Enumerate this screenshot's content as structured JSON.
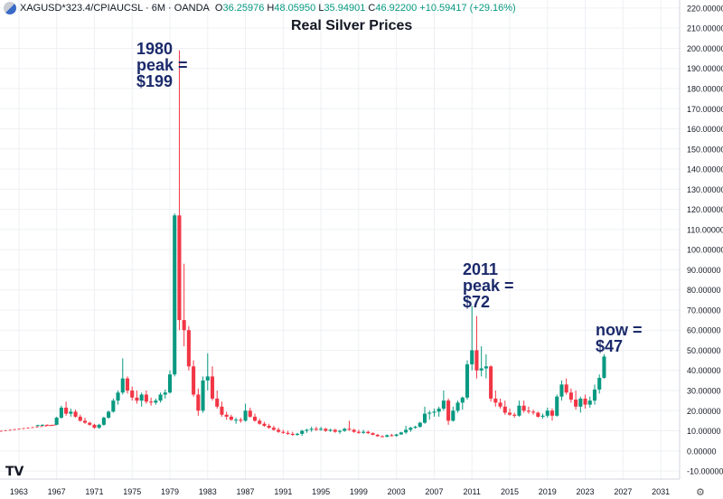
{
  "header": {
    "symbol": "XAGUSD*323.4/CPIAUCSL · 6M · OANDA",
    "open_label": "O",
    "open": "36.25976",
    "high_label": "H",
    "high": "48.05950",
    "low_label": "L",
    "low": "35.94901",
    "close_label": "C",
    "close": "46.92200",
    "change": "+10.59417 (+29.16%)"
  },
  "chart_data": {
    "type": "candlestick",
    "title": "Real Silver Prices",
    "xlabel": "",
    "ylabel": "",
    "x_ticks": [
      "1963",
      "1967",
      "1971",
      "1975",
      "1979",
      "1983",
      "1987",
      "1991",
      "1995",
      "1999",
      "2003",
      "2007",
      "2011",
      "2015",
      "2019",
      "2023",
      "2027",
      "2031"
    ],
    "y_ticks": [
      "220.00000",
      "210.00000",
      "200.00000",
      "190.00000",
      "180.00000",
      "170.00000",
      "160.00000",
      "150.00000",
      "140.00000",
      "130.00000",
      "120.00000",
      "110.00000",
      "100.00000",
      "90.00000",
      "80.00000",
      "70.00000",
      "60.00000",
      "50.00000",
      "40.00000",
      "30.00000",
      "20.00000",
      "10.00000",
      "0.00000",
      "-10.00000"
    ],
    "ylim": [
      -14,
      224
    ],
    "xlim": [
      1961.0,
      2033.0
    ],
    "grid": true,
    "annotations": [
      {
        "lines": [
          "1980",
          "peak =",
          "$199"
        ]
      },
      {
        "lines": [
          "2011",
          "peak =",
          "$72"
        ]
      },
      {
        "lines": [
          "now =",
          "$47"
        ]
      }
    ],
    "up_color": "#089981",
    "down_color": "#f23645",
    "pre_line": {
      "start": 1960.5,
      "end": 1967.0,
      "values_start": 9.5,
      "values_end": 13.0
    },
    "candles": [
      [
        1965.0,
        12.5,
        13.0,
        12.2,
        12.8
      ],
      [
        1965.5,
        12.8,
        13.2,
        12.5,
        13.0
      ],
      [
        1966.0,
        13.0,
        13.2,
        12.7,
        12.9
      ],
      [
        1966.5,
        12.9,
        13.1,
        12.6,
        12.8
      ],
      [
        1967.0,
        13.0,
        17.0,
        12.8,
        16.5
      ],
      [
        1967.5,
        16.5,
        22.5,
        16.0,
        21.5
      ],
      [
        1968.0,
        21.5,
        24.5,
        17.5,
        18.5
      ],
      [
        1968.5,
        18.5,
        21.0,
        17.0,
        19.5
      ],
      [
        1969.0,
        19.5,
        20.5,
        16.5,
        17.0
      ],
      [
        1969.5,
        17.0,
        18.0,
        14.5,
        15.0
      ],
      [
        1970.0,
        15.0,
        16.5,
        13.5,
        14.0
      ],
      [
        1970.5,
        14.0,
        14.5,
        12.5,
        13.0
      ],
      [
        1971.0,
        13.0,
        13.5,
        11.0,
        11.5
      ],
      [
        1971.5,
        11.5,
        13.5,
        11.0,
        13.0
      ],
      [
        1972.0,
        13.0,
        17.0,
        12.5,
        16.5
      ],
      [
        1972.5,
        16.5,
        20.0,
        16.0,
        19.5
      ],
      [
        1973.0,
        19.5,
        26.0,
        19.0,
        25.0
      ],
      [
        1973.5,
        25.0,
        30.0,
        23.0,
        29.0
      ],
      [
        1974.0,
        29.0,
        46.0,
        28.0,
        36.0
      ],
      [
        1974.5,
        36.0,
        37.0,
        28.5,
        30.0
      ],
      [
        1975.0,
        30.0,
        32.0,
        25.0,
        26.5
      ],
      [
        1975.5,
        26.5,
        30.0,
        23.5,
        25.0
      ],
      [
        1976.0,
        25.0,
        29.0,
        22.0,
        28.0
      ],
      [
        1976.5,
        28.0,
        30.0,
        23.5,
        24.5
      ],
      [
        1977.0,
        24.5,
        26.5,
        22.5,
        24.0
      ],
      [
        1977.5,
        24.0,
        26.0,
        23.0,
        25.0
      ],
      [
        1978.0,
        25.0,
        29.0,
        24.0,
        28.0
      ],
      [
        1978.5,
        28.0,
        30.5,
        26.0,
        29.0
      ],
      [
        1979.0,
        29.0,
        40.0,
        28.5,
        38.0
      ],
      [
        1979.5,
        38.0,
        118.0,
        37.0,
        117.0
      ],
      [
        1980.0,
        117.0,
        199.0,
        60.0,
        65.0
      ],
      [
        1980.5,
        65.0,
        93.0,
        52.0,
        60.0
      ],
      [
        1981.0,
        60.0,
        62.0,
        40.0,
        42.0
      ],
      [
        1981.5,
        42.0,
        45.0,
        27.0,
        28.0
      ],
      [
        1982.0,
        28.0,
        31.0,
        17.5,
        20.0
      ],
      [
        1982.5,
        20.0,
        37.0,
        19.0,
        35.0
      ],
      [
        1983.0,
        35.0,
        48.5,
        30.0,
        37.0
      ],
      [
        1983.5,
        37.0,
        42.0,
        25.0,
        26.0
      ],
      [
        1984.0,
        26.0,
        30.0,
        21.0,
        22.0
      ],
      [
        1984.5,
        22.0,
        24.5,
        17.0,
        18.0
      ],
      [
        1985.0,
        18.0,
        19.5,
        15.5,
        17.0
      ],
      [
        1985.5,
        17.0,
        18.0,
        15.0,
        15.5
      ],
      [
        1986.0,
        15.5,
        16.5,
        13.5,
        15.5
      ],
      [
        1986.5,
        15.5,
        16.5,
        14.0,
        15.0
      ],
      [
        1987.0,
        15.0,
        23.5,
        14.5,
        20.0
      ],
      [
        1987.5,
        20.0,
        21.5,
        16.5,
        17.0
      ],
      [
        1988.0,
        17.0,
        18.5,
        14.5,
        15.0
      ],
      [
        1988.5,
        15.0,
        16.0,
        13.0,
        13.5
      ],
      [
        1989.0,
        13.5,
        14.5,
        12.0,
        12.5
      ],
      [
        1989.5,
        12.5,
        13.5,
        11.0,
        11.5
      ],
      [
        1990.0,
        11.5,
        12.5,
        10.0,
        10.5
      ],
      [
        1990.5,
        10.5,
        11.5,
        9.0,
        9.5
      ],
      [
        1991.0,
        9.5,
        10.5,
        8.5,
        9.0
      ],
      [
        1991.5,
        9.0,
        10.0,
        8.0,
        8.5
      ],
      [
        1992.0,
        8.5,
        9.5,
        7.5,
        8.0
      ],
      [
        1992.5,
        8.0,
        9.0,
        7.5,
        8.5
      ],
      [
        1993.0,
        8.5,
        10.5,
        7.5,
        10.0
      ],
      [
        1993.5,
        10.0,
        11.0,
        9.0,
        10.5
      ],
      [
        1994.0,
        10.5,
        12.0,
        9.5,
        11.0
      ],
      [
        1994.5,
        11.0,
        12.0,
        10.0,
        10.5
      ],
      [
        1995.0,
        10.5,
        12.0,
        10.0,
        11.0
      ],
      [
        1995.5,
        11.0,
        11.5,
        9.5,
        10.0
      ],
      [
        1996.0,
        10.0,
        11.0,
        9.5,
        10.5
      ],
      [
        1996.5,
        10.5,
        11.0,
        9.0,
        9.5
      ],
      [
        1997.0,
        9.5,
        10.5,
        8.5,
        10.0
      ],
      [
        1997.5,
        10.0,
        11.5,
        9.5,
        11.0
      ],
      [
        1998.0,
        11.0,
        15.0,
        10.0,
        10.5
      ],
      [
        1998.5,
        10.5,
        11.0,
        9.0,
        9.5
      ],
      [
        1999.0,
        9.5,
        10.5,
        8.5,
        9.0
      ],
      [
        1999.5,
        9.0,
        10.5,
        8.5,
        9.5
      ],
      [
        2000.0,
        9.5,
        10.0,
        8.5,
        8.8
      ],
      [
        2000.5,
        8.8,
        9.2,
        7.8,
        8.0
      ],
      [
        2001.0,
        8.0,
        8.5,
        7.0,
        7.3
      ],
      [
        2001.5,
        7.3,
        7.8,
        6.8,
        7.0
      ],
      [
        2002.0,
        7.0,
        8.2,
        6.8,
        7.8
      ],
      [
        2002.5,
        7.8,
        8.5,
        7.2,
        7.5
      ],
      [
        2003.0,
        7.5,
        8.5,
        7.0,
        8.2
      ],
      [
        2003.5,
        8.2,
        9.5,
        8.0,
        9.2
      ],
      [
        2004.0,
        9.2,
        12.5,
        8.5,
        10.5
      ],
      [
        2004.5,
        10.5,
        12.0,
        9.5,
        11.5
      ],
      [
        2005.0,
        11.5,
        12.5,
        11.0,
        12.0
      ],
      [
        2005.5,
        12.0,
        14.5,
        11.5,
        14.0
      ],
      [
        2006.0,
        14.0,
        22.0,
        13.5,
        18.5
      ],
      [
        2006.5,
        18.5,
        20.0,
        15.5,
        19.0
      ],
      [
        2007.0,
        19.0,
        21.0,
        17.0,
        19.5
      ],
      [
        2007.5,
        19.5,
        22.0,
        17.0,
        21.0
      ],
      [
        2008.0,
        21.0,
        30.0,
        20.0,
        25.0
      ],
      [
        2008.5,
        25.0,
        26.0,
        13.0,
        15.0
      ],
      [
        2009.0,
        15.0,
        22.0,
        14.5,
        20.0
      ],
      [
        2009.5,
        20.0,
        25.0,
        19.0,
        24.0
      ],
      [
        2010.0,
        24.0,
        27.0,
        20.5,
        26.5
      ],
      [
        2010.5,
        26.5,
        45.0,
        25.5,
        43.0
      ],
      [
        2011.0,
        43.0,
        72.0,
        40.0,
        50.0
      ],
      [
        2011.5,
        50.0,
        67.0,
        36.0,
        40.0
      ],
      [
        2012.0,
        40.0,
        52.0,
        37.0,
        41.0
      ],
      [
        2012.5,
        41.0,
        48.0,
        36.0,
        42.0
      ],
      [
        2013.0,
        42.0,
        42.5,
        24.5,
        26.0
      ],
      [
        2013.5,
        26.0,
        30.0,
        22.0,
        24.0
      ],
      [
        2014.0,
        24.0,
        26.0,
        21.0,
        22.0
      ],
      [
        2014.5,
        22.0,
        25.0,
        18.0,
        19.0
      ],
      [
        2015.0,
        19.0,
        21.0,
        17.5,
        18.0
      ],
      [
        2015.5,
        18.0,
        19.0,
        16.5,
        17.5
      ],
      [
        2016.0,
        17.5,
        25.0,
        17.0,
        22.5
      ],
      [
        2016.5,
        22.5,
        25.0,
        19.0,
        20.0
      ],
      [
        2017.0,
        20.0,
        22.0,
        18.5,
        19.5
      ],
      [
        2017.5,
        19.5,
        20.5,
        18.0,
        19.0
      ],
      [
        2018.0,
        19.0,
        19.5,
        16.5,
        17.0
      ],
      [
        2018.5,
        17.0,
        18.5,
        16.0,
        17.5
      ],
      [
        2019.0,
        17.5,
        21.5,
        16.5,
        20.0
      ],
      [
        2019.5,
        20.0,
        21.0,
        15.0,
        17.5
      ],
      [
        2020.0,
        17.5,
        28.0,
        17.0,
        27.0
      ],
      [
        2020.5,
        27.0,
        35.0,
        25.0,
        33.0
      ],
      [
        2021.0,
        33.0,
        36.0,
        28.0,
        29.0
      ],
      [
        2021.5,
        29.0,
        31.0,
        24.0,
        25.5
      ],
      [
        2022.0,
        25.5,
        30.0,
        20.5,
        22.0
      ],
      [
        2022.5,
        22.0,
        27.0,
        19.0,
        26.0
      ],
      [
        2023.0,
        26.0,
        28.0,
        21.0,
        23.0
      ],
      [
        2023.5,
        23.0,
        27.0,
        21.5,
        25.0
      ],
      [
        2024.0,
        25.0,
        33.0,
        23.0,
        30.5
      ],
      [
        2024.5,
        30.5,
        38.0,
        28.5,
        36.3
      ],
      [
        2025.0,
        36.3,
        48.1,
        35.9,
        46.9
      ]
    ]
  },
  "logo": "TV",
  "settings_icon": "gear-icon"
}
